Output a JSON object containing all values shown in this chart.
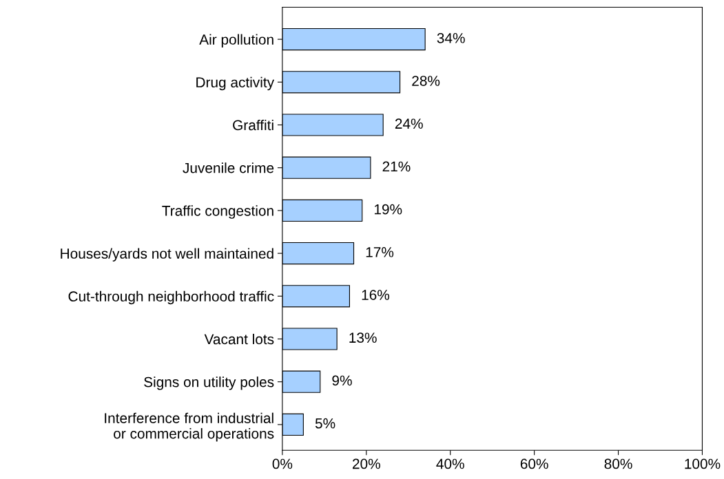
{
  "chart_data": {
    "type": "bar",
    "orientation": "horizontal",
    "categories": [
      "Air pollution",
      "Drug activity",
      "Graffiti",
      "Juvenile crime",
      "Traffic congestion",
      "Houses/yards not well maintained",
      "Cut-through neighborhood traffic",
      "Vacant lots",
      "Signs on utility poles",
      "Interference from industrial\nor commercial operations"
    ],
    "values": [
      34,
      28,
      24,
      21,
      19,
      17,
      16,
      13,
      9,
      5
    ],
    "value_labels": [
      "34%",
      "28%",
      "24%",
      "21%",
      "19%",
      "17%",
      "16%",
      "13%",
      "9%",
      "5%"
    ],
    "color": "#a6d0ff",
    "xlim": [
      0,
      100
    ],
    "xticks": [
      {
        "value": 0,
        "label": "0%"
      },
      {
        "value": 20,
        "label": "20%"
      },
      {
        "value": 40,
        "label": "40%"
      },
      {
        "value": 60,
        "label": "60%"
      },
      {
        "value": 80,
        "label": "80%"
      },
      {
        "value": 100,
        "label": "100%"
      }
    ],
    "grid": false
  }
}
